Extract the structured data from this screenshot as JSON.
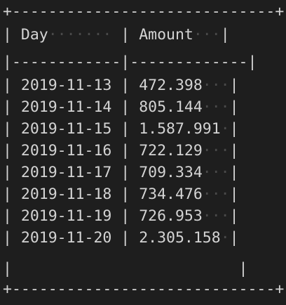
{
  "colors": {
    "background": "#1e1e1e",
    "text": "#d4d4d4",
    "whitespace_dots": "#4a4a4a"
  },
  "table": {
    "columns": [
      "Day",
      "Amount"
    ],
    "rows": [
      {
        "day": "2019-11-13",
        "amount": "472.398"
      },
      {
        "day": "2019-11-14",
        "amount": "805.144"
      },
      {
        "day": "2019-11-15",
        "amount": "1.587.991"
      },
      {
        "day": "2019-11-16",
        "amount": "722.129"
      },
      {
        "day": "2019-11-17",
        "amount": "709.334"
      },
      {
        "day": "2019-11-18",
        "amount": "734.476"
      },
      {
        "day": "2019-11-19",
        "amount": "726.953"
      },
      {
        "day": "2019-11-20",
        "amount": "2.305.158"
      }
    ]
  }
}
